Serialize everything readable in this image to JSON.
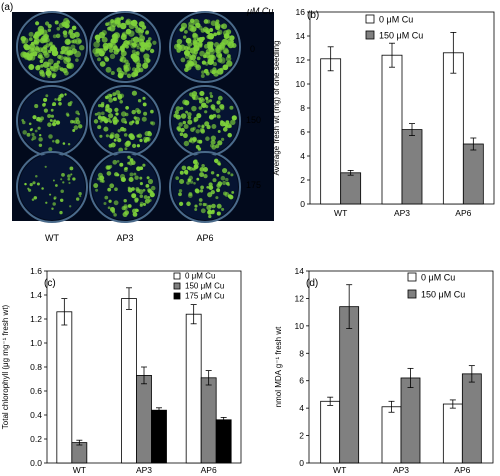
{
  "panels": {
    "a": {
      "label": "(a)",
      "unit_header": "μM Cu",
      "row_labels": [
        "0",
        "150",
        "175"
      ],
      "column_labels": [
        "WT",
        "AP3",
        "AP6"
      ],
      "colors": {
        "background": "#020a1c",
        "plate_rim": "#4a6a8a",
        "plate_fill": "#061432",
        "seedling": "#7ed23a"
      },
      "seedling_density": [
        [
          1.0,
          1.0,
          1.0
        ],
        [
          0.45,
          0.7,
          0.7
        ],
        [
          0.25,
          0.6,
          0.6
        ]
      ]
    }
  },
  "chart_data": [
    {
      "id": "b",
      "panel_label": "(b)",
      "type": "bar",
      "categories": [
        "WT",
        "AP3",
        "AP6"
      ],
      "series": [
        {
          "name": "0 μM Cu",
          "color": "#ffffff",
          "values": [
            12.1,
            12.4,
            12.6
          ],
          "errors": [
            1.0,
            1.0,
            1.7
          ]
        },
        {
          "name": "150 μM Cu",
          "color": "#808080",
          "values": [
            2.6,
            6.2,
            5.0
          ],
          "errors": [
            0.2,
            0.5,
            0.5
          ]
        }
      ],
      "ylabel": "Average fresh wt (mg) of one seedling",
      "xlabel": "",
      "ylim": [
        0,
        16
      ],
      "yticks": [
        0,
        2,
        4,
        6,
        8,
        10,
        12,
        14,
        16
      ],
      "ytick_decimals": 0,
      "legend": "top-right",
      "grid": false
    },
    {
      "id": "c",
      "panel_label": "(c)",
      "type": "bar",
      "categories": [
        "WT",
        "AP3",
        "AP6"
      ],
      "series": [
        {
          "name": "0 μM Cu",
          "color": "#ffffff",
          "values": [
            1.26,
            1.37,
            1.24
          ],
          "errors": [
            0.11,
            0.09,
            0.08
          ]
        },
        {
          "name": "150 μM Cu",
          "color": "#808080",
          "values": [
            0.17,
            0.73,
            0.71
          ],
          "errors": [
            0.02,
            0.07,
            0.06
          ]
        },
        {
          "name": "175 μM Cu",
          "color": "#000000",
          "values": [
            null,
            0.44,
            0.36
          ],
          "errors": [
            null,
            0.02,
            0.02
          ]
        }
      ],
      "ylabel": "Total chlorophyll (μg mg⁻¹ fresh wt)",
      "xlabel": "",
      "ylim": [
        0,
        1.6
      ],
      "yticks": [
        0,
        0.2,
        0.4,
        0.6,
        0.8,
        1.0,
        1.2,
        1.4,
        1.6
      ],
      "ytick_decimals": 1,
      "legend": "top-right",
      "grid": false
    },
    {
      "id": "d",
      "panel_label": "(d)",
      "type": "bar",
      "categories": [
        "WT",
        "AP3",
        "AP6"
      ],
      "series": [
        {
          "name": "0 μM Cu",
          "color": "#ffffff",
          "values": [
            4.5,
            4.1,
            4.3
          ],
          "errors": [
            0.3,
            0.4,
            0.3
          ]
        },
        {
          "name": "150 μM Cu",
          "color": "#808080",
          "values": [
            11.4,
            6.2,
            6.5
          ],
          "errors": [
            1.6,
            0.7,
            0.6
          ]
        }
      ],
      "ylabel": "nmol MDA g⁻¹ fresh wt",
      "xlabel": "",
      "ylim": [
        0,
        14
      ],
      "yticks": [
        0,
        2,
        4,
        6,
        8,
        10,
        12,
        14
      ],
      "ytick_decimals": 0,
      "legend": "top-right",
      "grid": false
    }
  ]
}
